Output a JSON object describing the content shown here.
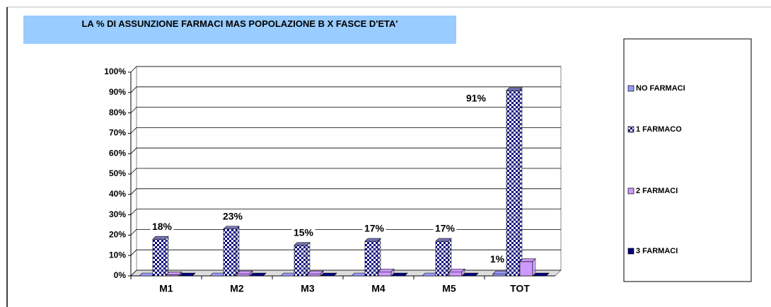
{
  "chart_data": {
    "type": "bar3d",
    "title": "LA  % DI ASSUNZIONE FARMACI MAS    POPOLAZIONE B X FASCE D'ETA'",
    "categories": [
      "M1",
      "M2",
      "M3",
      "M4",
      "M5",
      "TOT"
    ],
    "series": [
      {
        "name": "NO FARMACI",
        "color": "#9999ff",
        "values": [
          0,
          0,
          0,
          0,
          0,
          1
        ],
        "value_labels": [
          null,
          null,
          null,
          null,
          null,
          "1%"
        ]
      },
      {
        "name": "1 FARMACO",
        "color": "#000080",
        "pattern": "checkered",
        "values": [
          18,
          23,
          15,
          17,
          17,
          91
        ],
        "value_labels": [
          "18%",
          "23%",
          "15%",
          "17%",
          "17%",
          "91%"
        ]
      },
      {
        "name": "2 FARMACI",
        "color": "#cc99ff",
        "values": [
          0.5,
          1,
          1,
          2,
          2,
          7
        ]
      },
      {
        "name": "3 FARMACI",
        "color": "#000080",
        "values": [
          0,
          0,
          0,
          0,
          0,
          0
        ]
      }
    ],
    "ylim": [
      0,
      100
    ],
    "yticks": [
      {
        "value": 0,
        "label": "0%"
      },
      {
        "value": 10,
        "label": "10%"
      },
      {
        "value": 20,
        "label": "20%"
      },
      {
        "value": 30,
        "label": "30%"
      },
      {
        "value": 40,
        "label": "40%"
      },
      {
        "value": 50,
        "label": "50%"
      },
      {
        "value": 60,
        "label": "60%"
      },
      {
        "value": 70,
        "label": "70%"
      },
      {
        "value": 80,
        "label": "80%"
      },
      {
        "value": 90,
        "label": "90%"
      },
      {
        "value": 100,
        "label": "100%"
      }
    ],
    "grid": true,
    "legend": "right"
  }
}
